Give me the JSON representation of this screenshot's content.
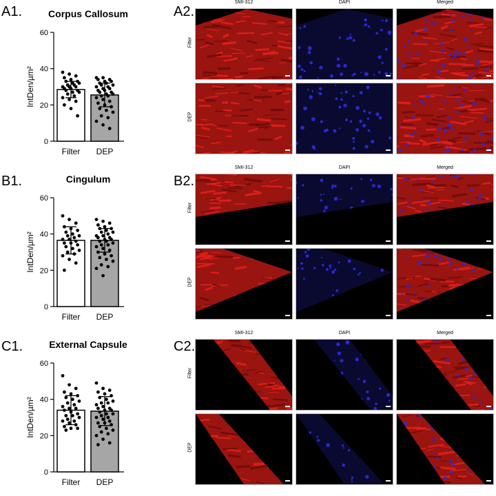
{
  "panels": {
    "A": {
      "chart_label": "A1.",
      "image_label": "A2.",
      "image_columns": [
        "SMI-312",
        "DAPI",
        "Merged"
      ],
      "image_rows": [
        "Filter",
        "DEP"
      ]
    },
    "B": {
      "chart_label": "B1.",
      "image_label": "B2.",
      "image_columns": [
        "SMI-312",
        "DAPI",
        "Merged"
      ],
      "image_rows": [
        "Filter",
        "DEP"
      ]
    },
    "C": {
      "chart_label": "C1.",
      "image_label": "C2.",
      "image_columns": [
        "SMI-312",
        "DAPI",
        "Merged"
      ],
      "image_rows": [
        "Filter",
        "DEP"
      ]
    }
  },
  "colors": {
    "filter_bar": "#ffffff",
    "dep_bar": "#a6a6a6",
    "axon_red": "#e0201a",
    "nuclei_blue": "#2a2ad8"
  },
  "chart_data": [
    {
      "type": "bar",
      "title": "Corpus Callosum",
      "ylabel": "IntDen/µm²",
      "xlabel": "",
      "categories": [
        "Filter",
        "DEP"
      ],
      "values": [
        28.5,
        25.5
      ],
      "errors": [
        4.5,
        6.5
      ],
      "ylim": [
        0,
        60
      ],
      "yticks": [
        0,
        20,
        40,
        60
      ],
      "points": [
        [
          38,
          37,
          36,
          35,
          34,
          33,
          33,
          32,
          32,
          31,
          31,
          30,
          30,
          30,
          29,
          29,
          28,
          28,
          27,
          27,
          26,
          25,
          24,
          23,
          22,
          20,
          18,
          14
        ],
        [
          35,
          35,
          34,
          34,
          33,
          33,
          32,
          32,
          31,
          31,
          30,
          30,
          29,
          29,
          28,
          28,
          27,
          27,
          26,
          26,
          25,
          25,
          24,
          23,
          22,
          21,
          20,
          19,
          18,
          17,
          16,
          14,
          13,
          11,
          9,
          7
        ]
      ]
    },
    {
      "type": "bar",
      "title": "Cingulum",
      "ylabel": "IntDen/µm²",
      "xlabel": "",
      "categories": [
        "Filter",
        "DEP"
      ],
      "values": [
        36.5,
        36.5
      ],
      "errors": [
        7.5,
        6.5
      ],
      "ylim": [
        0,
        60
      ],
      "yticks": [
        0,
        20,
        40,
        60
      ],
      "points": [
        [
          50,
          48,
          46,
          44,
          43,
          42,
          41,
          40,
          39,
          39,
          38,
          37,
          37,
          36,
          35,
          35,
          34,
          33,
          32,
          31,
          30,
          29,
          28,
          26,
          24,
          20
        ],
        [
          48,
          47,
          46,
          45,
          44,
          43,
          43,
          42,
          41,
          41,
          40,
          39,
          39,
          38,
          38,
          37,
          37,
          36,
          36,
          35,
          34,
          34,
          33,
          32,
          31,
          30,
          29,
          28,
          27,
          26,
          25,
          23,
          22,
          21,
          17
        ]
      ]
    },
    {
      "type": "bar",
      "title": "External Capsule",
      "ylabel": "IntDen/µm²",
      "xlabel": "",
      "categories": [
        "Filter",
        "DEP"
      ],
      "values": [
        34.0,
        33.5
      ],
      "errors": [
        8.0,
        8.0
      ],
      "ylim": [
        0,
        60
      ],
      "yticks": [
        0,
        20,
        40,
        60
      ],
      "points": [
        [
          53,
          48,
          46,
          44,
          43,
          42,
          41,
          40,
          39,
          38,
          37,
          36,
          35,
          35,
          34,
          33,
          32,
          31,
          31,
          30,
          29,
          28,
          28,
          27,
          26,
          25,
          24,
          24,
          23
        ],
        [
          49,
          46,
          45,
          44,
          43,
          42,
          41,
          40,
          39,
          38,
          38,
          37,
          36,
          35,
          35,
          34,
          34,
          33,
          32,
          32,
          31,
          30,
          30,
          29,
          28,
          27,
          27,
          26,
          25,
          24,
          23,
          22,
          21,
          20,
          18,
          16,
          15
        ]
      ]
    }
  ]
}
